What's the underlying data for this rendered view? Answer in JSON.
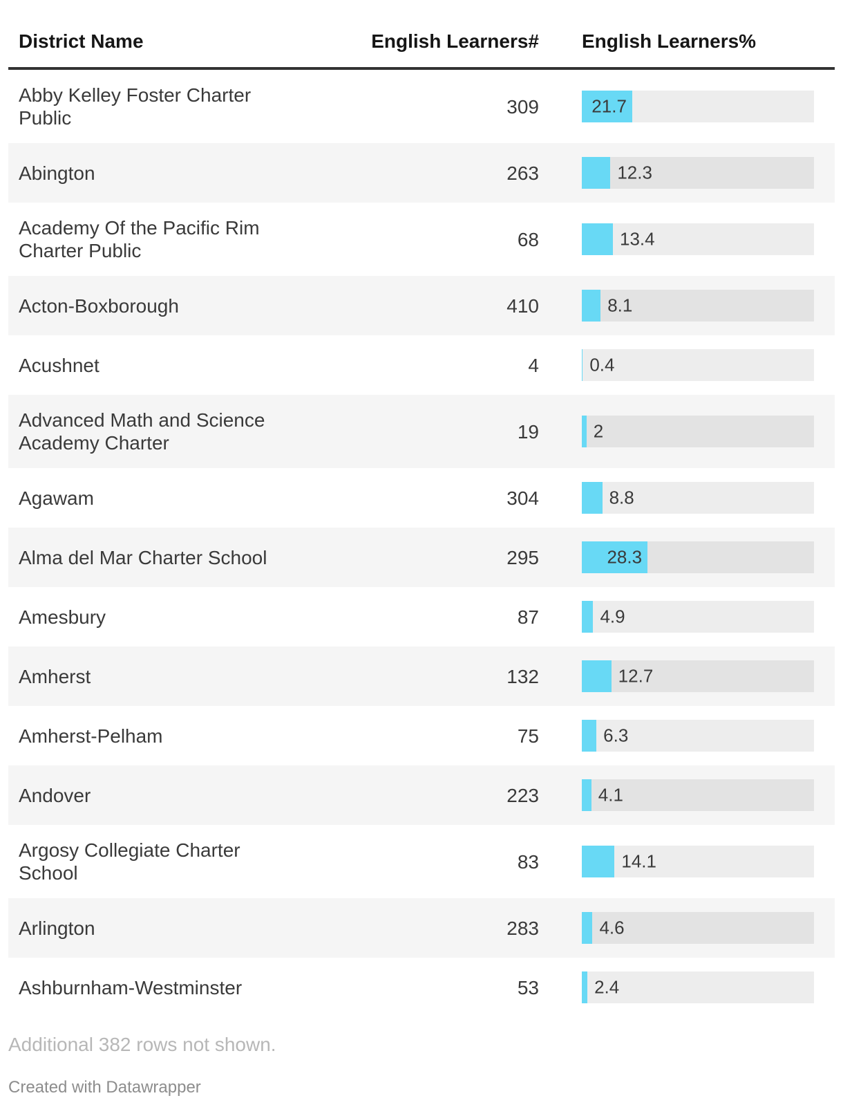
{
  "header": {
    "columns": [
      "District Name",
      "English Learners#",
      "English Learners%"
    ]
  },
  "chart_data": {
    "type": "table",
    "columns": [
      "District Name",
      "English Learners#",
      "English Learners%"
    ],
    "bar_column": "English Learners%",
    "bar_axis_max": 100,
    "bar_label_inside_threshold": 20,
    "rows": [
      {
        "district": "Abby Kelley Foster Charter Public",
        "count": "309",
        "percent": 21.7
      },
      {
        "district": "Abington",
        "count": "263",
        "percent": 12.3
      },
      {
        "district": "Academy Of the Pacific Rim Charter Public",
        "count": "68",
        "percent": 13.4
      },
      {
        "district": "Acton-Boxborough",
        "count": "410",
        "percent": 8.1
      },
      {
        "district": "Acushnet",
        "count": "4",
        "percent": 0.4
      },
      {
        "district": "Advanced Math and Science Academy Charter",
        "count": "19",
        "percent": 2
      },
      {
        "district": "Agawam",
        "count": "304",
        "percent": 8.8
      },
      {
        "district": "Alma del Mar Charter School",
        "count": "295",
        "percent": 28.3
      },
      {
        "district": "Amesbury",
        "count": "87",
        "percent": 4.9
      },
      {
        "district": "Amherst",
        "count": "132",
        "percent": 12.7
      },
      {
        "district": "Amherst-Pelham",
        "count": "75",
        "percent": 6.3
      },
      {
        "district": "Andover",
        "count": "223",
        "percent": 4.1
      },
      {
        "district": "Argosy Collegiate Charter School",
        "count": "83",
        "percent": 14.1
      },
      {
        "district": "Arlington",
        "count": "283",
        "percent": 4.6
      },
      {
        "district": "Ashburnham-Westminster",
        "count": "53",
        "percent": 2.4
      }
    ]
  },
  "footer": {
    "note": "Additional 382 rows not shown.",
    "credit": "Created with Datawrapper"
  },
  "colors": {
    "bar": "#68d9f5",
    "bar_track": "rgba(0,0,0,0.072)",
    "row_stripe": "#f5f5f5",
    "header_rule": "#333333"
  }
}
